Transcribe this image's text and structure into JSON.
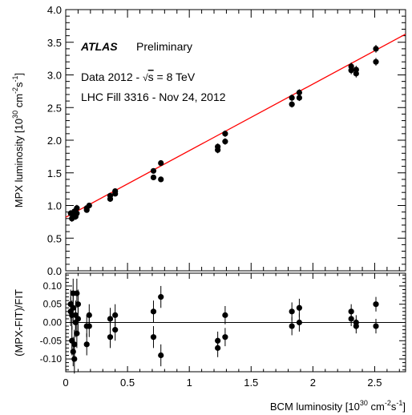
{
  "chart_data": [
    {
      "type": "scatter",
      "panel": "main",
      "ylabel_text": "MPX luminosity [10",
      "ylabel_exp": "30",
      "ylabel_unit": " cm",
      "ylabel_unit_exp": "-2",
      "ylabel_s": "s",
      "ylabel_s_exp": "-1",
      "ylabel_close": "]",
      "xlim": [
        0,
        2.75
      ],
      "ylim": [
        0,
        4.0
      ],
      "yticks": [
        "0.0",
        "0.5",
        "1.0",
        "1.5",
        "2.0",
        "2.5",
        "3.0",
        "3.5",
        "4.0"
      ],
      "ytick_values": [
        0,
        0.5,
        1.0,
        1.5,
        2.0,
        2.5,
        3.0,
        3.5,
        4.0
      ],
      "annotations": {
        "atlas": "ATLAS",
        "preliminary": "Preliminary",
        "data_line_prefix": "Data 2012 - ",
        "data_line_sqrt": "√",
        "data_line_s": "s",
        "data_line_suffix": " = 8 TeV",
        "fill_line": "LHC Fill 3316 - Nov 24, 2012"
      },
      "fit_line": {
        "slope": 1.02,
        "intercept": 0.82,
        "color": "#ff0000"
      },
      "series": [
        {
          "marker_color": "#000000",
          "x": [
            0.04,
            0.05,
            0.06,
            0.06,
            0.07,
            0.08,
            0.09,
            0.09,
            0.17,
            0.17,
            0.19,
            0.36,
            0.36,
            0.4,
            0.4,
            0.71,
            0.71,
            0.77,
            0.77,
            1.23,
            1.23,
            1.29,
            1.29,
            1.83,
            1.83,
            1.89,
            1.89,
            2.31,
            2.31,
            2.35,
            2.35,
            2.51,
            2.51
          ],
          "y": [
            0.88,
            0.8,
            0.86,
            0.82,
            0.91,
            0.83,
            0.96,
            0.88,
            0.93,
            0.96,
            1.0,
            1.1,
            1.15,
            1.18,
            1.22,
            1.43,
            1.53,
            1.4,
            1.65,
            1.85,
            1.9,
            1.98,
            2.1,
            2.55,
            2.65,
            2.65,
            2.73,
            3.07,
            3.13,
            3.02,
            3.08,
            3.2,
            3.4
          ],
          "yerr": [
            0.05,
            0.05,
            0.05,
            0.05,
            0.05,
            0.05,
            0.05,
            0.05,
            0.04,
            0.04,
            0.04,
            0.04,
            0.04,
            0.04,
            0.04,
            0.04,
            0.04,
            0.04,
            0.04,
            0.05,
            0.05,
            0.05,
            0.05,
            0.05,
            0.05,
            0.05,
            0.05,
            0.06,
            0.06,
            0.06,
            0.06,
            0.06,
            0.06
          ]
        }
      ]
    },
    {
      "type": "scatter",
      "panel": "ratio",
      "ylabel": "(MPX-FIT)/FIT",
      "xlabel_text": "BCM luminosity [10",
      "xlabel_exp": "30",
      "xlabel_unit": " cm",
      "xlabel_unit_exp": "-2",
      "xlabel_s": "s",
      "xlabel_s_exp": "-1",
      "xlabel_close": "]",
      "xlim": [
        0,
        2.75
      ],
      "ylim": [
        -0.135,
        0.135
      ],
      "xticks": [
        "0",
        "0.5",
        "1",
        "1.5",
        "2",
        "2.5"
      ],
      "xtick_values": [
        0,
        0.5,
        1,
        1.5,
        2,
        2.5
      ],
      "yticks": [
        "-0.10",
        "-0.05",
        "0.00",
        "0.05",
        "0.10"
      ],
      "ytick_values": [
        -0.1,
        -0.05,
        0.0,
        0.05,
        0.1
      ],
      "series": [
        {
          "marker_color": "#000000",
          "x": [
            0.04,
            0.04,
            0.05,
            0.05,
            0.06,
            0.06,
            0.06,
            0.07,
            0.07,
            0.08,
            0.08,
            0.09,
            0.09,
            0.1,
            0.1,
            0.17,
            0.17,
            0.19,
            0.19,
            0.36,
            0.36,
            0.4,
            0.4,
            0.71,
            0.71,
            0.77,
            0.77,
            1.23,
            1.23,
            1.29,
            1.29,
            1.83,
            1.83,
            1.89,
            1.89,
            2.31,
            2.31,
            2.35,
            2.35,
            2.51,
            2.51
          ],
          "y": [
            0.05,
            0.03,
            0.02,
            -0.05,
            0.04,
            -0.08,
            0.08,
            -0.06,
            -0.1,
            0.02,
            0.0,
            0.08,
            -0.03,
            0.01,
            0.05,
            -0.01,
            -0.06,
            -0.01,
            0.02,
            0.01,
            -0.04,
            0.02,
            -0.02,
            0.03,
            -0.04,
            0.07,
            -0.09,
            -0.05,
            -0.07,
            0.02,
            -0.04,
            0.03,
            -0.01,
            0.04,
            0.0,
            0.03,
            0.01,
            0.0,
            -0.01,
            0.05,
            -0.01
          ],
          "yerr": [
            0.04,
            0.04,
            0.04,
            0.04,
            0.04,
            0.04,
            0.04,
            0.04,
            0.04,
            0.04,
            0.04,
            0.04,
            0.04,
            0.04,
            0.04,
            0.03,
            0.03,
            0.03,
            0.03,
            0.03,
            0.03,
            0.03,
            0.03,
            0.03,
            0.03,
            0.03,
            0.03,
            0.025,
            0.025,
            0.025,
            0.025,
            0.025,
            0.025,
            0.025,
            0.025,
            0.02,
            0.02,
            0.02,
            0.02,
            0.02,
            0.02
          ]
        }
      ]
    }
  ]
}
